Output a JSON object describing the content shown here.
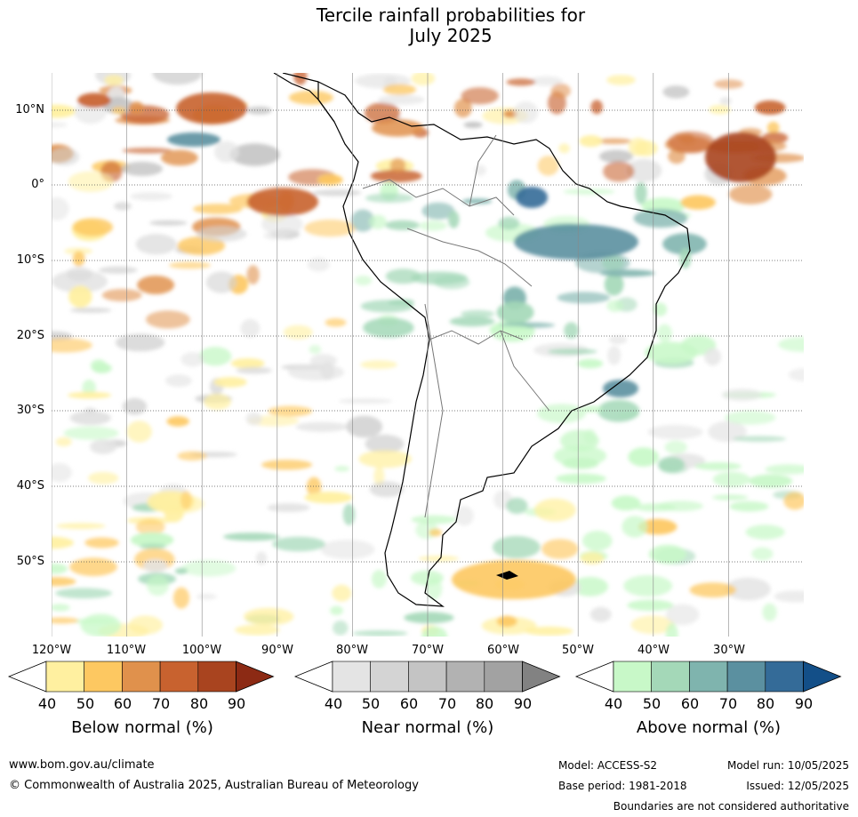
{
  "title_line1": "Tercile rainfall probabilities for",
  "title_line2": "July 2025",
  "map": {
    "region": "South America",
    "lat_labels": [
      "10°N",
      "0°",
      "10°S",
      "20°S",
      "30°S",
      "40°S",
      "50°S"
    ],
    "lon_labels": [
      "120°W",
      "110°W",
      "100°W",
      "90°W",
      "80°W",
      "70°W",
      "60°W",
      "50°W",
      "40°W",
      "30°W"
    ],
    "grid_style": "dotted"
  },
  "legends": [
    {
      "title": "Below normal (%)",
      "ticks": [
        "40",
        "50",
        "60",
        "70",
        "80",
        "90"
      ],
      "colors": [
        "#fff0a0",
        "#fdc861",
        "#e0914c",
        "#c8622f",
        "#a9441f",
        "#8c2a14"
      ]
    },
    {
      "title": "Near normal (%)",
      "ticks": [
        "40",
        "50",
        "60",
        "70",
        "80",
        "90"
      ],
      "colors": [
        "#e4e4e4",
        "#d4d4d4",
        "#c4c4c4",
        "#b2b2b2",
        "#a2a2a2",
        "#828282"
      ]
    },
    {
      "title": "Above normal (%)",
      "ticks": [
        "40",
        "50",
        "60",
        "70",
        "80",
        "90"
      ],
      "colors": [
        "#c8f8c8",
        "#a4d8b8",
        "#7fb4ae",
        "#5b90a0",
        "#346b98",
        "#134f88"
      ]
    }
  ],
  "footer": {
    "url": "www.bom.gov.au/climate",
    "copyright": "© Commonwealth of Australia 2025, Australian Bureau of Meteorology",
    "model": "Model: ACCESS-S2",
    "base_period": "Base period: 1981-2018",
    "model_run": "Model run: 10/05/2025",
    "issued": "Issued: 12/05/2025",
    "disclaimer": "Boundaries are not considered authoritative"
  }
}
